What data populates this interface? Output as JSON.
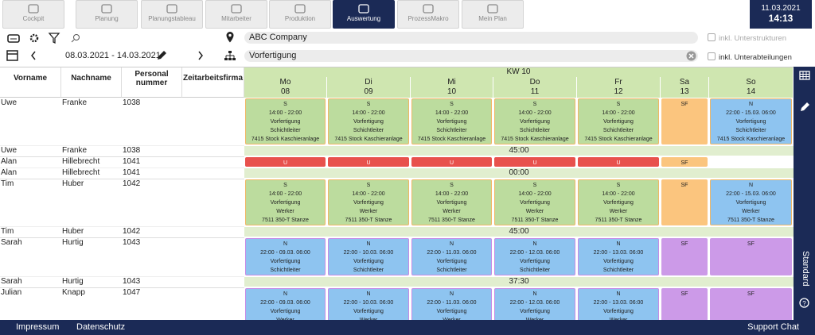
{
  "nav": {
    "items": [
      "Cockpit",
      "Planung",
      "Planungstableau",
      "Mitarbeiter",
      "Produktion",
      "Auswertung",
      "ProzessMakro",
      "Mein Plan"
    ],
    "active": 5
  },
  "datetime": {
    "date": "11.03.2021",
    "time": "14:13"
  },
  "filters": {
    "company": "ABC Company",
    "company_option": "inkl. Unterstrukturen",
    "period": "08.03.2021 - 14.03.2021",
    "department": "Vorfertigung",
    "department_option": "inkl. Unterabteilungen"
  },
  "table": {
    "headers": [
      "Vorname",
      "Nachname",
      "Personal nummer",
      "Zeitarbeitsfirma"
    ],
    "week": "KW 10",
    "days": [
      {
        "name": "Mo",
        "num": "08"
      },
      {
        "name": "Di",
        "num": "09"
      },
      {
        "name": "Mi",
        "num": "10"
      },
      {
        "name": "Do",
        "num": "11"
      },
      {
        "name": "Fr",
        "num": "12"
      },
      {
        "name": "Sa",
        "num": "13"
      },
      {
        "name": "So",
        "num": "14"
      }
    ],
    "employees": [
      {
        "first": "Uwe",
        "last": "Franke",
        "id": "1038",
        "total": "45:00",
        "shifts": [
          {
            "lines": [
              "S",
              "14:00 - 22:00",
              "Vorfertigung",
              "Schichtleiter",
              "7415 Stock Kaschieranlage"
            ],
            "fill": "#bcdc9e",
            "border": "#f0b766"
          },
          {
            "lines": [
              "S",
              "14:00 - 22:00",
              "Vorfertigung",
              "Schichtleiter",
              "7415 Stock Kaschieranlage"
            ],
            "fill": "#bcdc9e",
            "border": "#f0b766"
          },
          {
            "lines": [
              "S",
              "14:00 - 22:00",
              "Vorfertigung",
              "Schichtleiter",
              "7415 Stock Kaschieranlage"
            ],
            "fill": "#bcdc9e",
            "border": "#f0b766"
          },
          {
            "lines": [
              "S",
              "14:00 - 22:00",
              "Vorfertigung",
              "Schichtleiter",
              "7415 Stock Kaschieranlage"
            ],
            "fill": "#bcdc9e",
            "border": "#f0b766"
          },
          {
            "lines": [
              "S",
              "14:00 - 22:00",
              "Vorfertigung",
              "Schichtleiter",
              "7415 Stock Kaschieranlage"
            ],
            "fill": "#bcdc9e",
            "border": "#f0b766"
          },
          {
            "lines": [
              "SF"
            ],
            "fill": "#fbc57e",
            "border": "#fbc57e"
          },
          {
            "lines": [
              "N",
              "22:00 - 15.03. 06:00",
              "Vorfertigung",
              "Schichtleiter",
              "7415 Stock Kaschieranlage"
            ],
            "fill": "#8ec4f0",
            "border": "#f0b766"
          }
        ]
      },
      {
        "first": "Alan",
        "last": "Hillebrecht",
        "id": "1041",
        "total": "00:00",
        "shifts": [
          {
            "lines": [
              "U"
            ],
            "fill": "#e8514d",
            "border": "#e8514d"
          },
          {
            "lines": [
              "U"
            ],
            "fill": "#e8514d",
            "border": "#e8514d"
          },
          {
            "lines": [
              "U"
            ],
            "fill": "#e8514d",
            "border": "#e8514d"
          },
          {
            "lines": [
              "U"
            ],
            "fill": "#e8514d",
            "border": "#e8514d"
          },
          {
            "lines": [
              "U"
            ],
            "fill": "#e8514d",
            "border": "#e8514d"
          },
          {
            "lines": [
              "SF"
            ],
            "fill": "#fbc57e",
            "border": "#fbc57e"
          },
          null
        ]
      },
      {
        "first": "Tim",
        "last": "Huber",
        "id": "1042",
        "total": "45:00",
        "shifts": [
          {
            "lines": [
              "S",
              "14:00 - 22:00",
              "Vorfertigung",
              "Werker",
              "7511 350-T Stanze"
            ],
            "fill": "#bcdc9e",
            "border": "#f0b766"
          },
          {
            "lines": [
              "S",
              "14:00 - 22:00",
              "Vorfertigung",
              "Werker",
              "7511 350-T Stanze"
            ],
            "fill": "#bcdc9e",
            "border": "#f0b766"
          },
          {
            "lines": [
              "S",
              "14:00 - 22:00",
              "Vorfertigung",
              "Werker",
              "7511 350-T Stanze"
            ],
            "fill": "#bcdc9e",
            "border": "#f0b766"
          },
          {
            "lines": [
              "S",
              "14:00 - 22:00",
              "Vorfertigung",
              "Werker",
              "7511 350-T Stanze"
            ],
            "fill": "#bcdc9e",
            "border": "#f0b766"
          },
          {
            "lines": [
              "S",
              "14:00 - 22:00",
              "Vorfertigung",
              "Werker",
              "7511 350-T Stanze"
            ],
            "fill": "#bcdc9e",
            "border": "#f0b766"
          },
          {
            "lines": [
              "SF"
            ],
            "fill": "#fbc57e",
            "border": "#fbc57e"
          },
          {
            "lines": [
              "N",
              "22:00 - 15.03. 06:00",
              "Vorfertigung",
              "Werker",
              "7511 350-T Stanze"
            ],
            "fill": "#8ec4f0",
            "border": "#f0b766"
          }
        ]
      },
      {
        "first": "Sarah",
        "last": "Hurtig",
        "id": "1043",
        "total": "37:30",
        "shifts": [
          {
            "lines": [
              "N",
              "22:00 - 09.03. 06:00",
              "Vorfertigung",
              "Schichtleiter"
            ],
            "fill": "#8ec4f0",
            "border": "#c58be6"
          },
          {
            "lines": [
              "N",
              "22:00 - 10.03. 06:00",
              "Vorfertigung",
              "Schichtleiter"
            ],
            "fill": "#8ec4f0",
            "border": "#c58be6"
          },
          {
            "lines": [
              "N",
              "22:00 - 11.03. 06:00",
              "Vorfertigung",
              "Schichtleiter"
            ],
            "fill": "#8ec4f0",
            "border": "#c58be6"
          },
          {
            "lines": [
              "N",
              "22:00 - 12.03. 06:00",
              "Vorfertigung",
              "Schichtleiter"
            ],
            "fill": "#8ec4f0",
            "border": "#c58be6"
          },
          {
            "lines": [
              "N",
              "22:00 - 13.03. 06:00",
              "Vorfertigung",
              "Schichtleiter"
            ],
            "fill": "#8ec4f0",
            "border": "#c58be6"
          },
          {
            "lines": [
              "SF"
            ],
            "fill": "#cc9ae8",
            "border": "#cc9ae8"
          },
          {
            "lines": [
              "SF"
            ],
            "fill": "#cc9ae8",
            "border": "#cc9ae8"
          }
        ]
      },
      {
        "first": "Julian",
        "last": "Knapp",
        "id": "1047",
        "shifts": [
          {
            "lines": [
              "N",
              "22:00 - 09.03. 06:00",
              "Vorfertigung",
              "Werker"
            ],
            "fill": "#8ec4f0",
            "border": "#c58be6"
          },
          {
            "lines": [
              "N",
              "22:00 - 10.03. 06:00",
              "Vorfertigung",
              "Werker"
            ],
            "fill": "#8ec4f0",
            "border": "#c58be6"
          },
          {
            "lines": [
              "N",
              "22:00 - 11.03. 06:00",
              "Vorfertigung",
              "Werker"
            ],
            "fill": "#8ec4f0",
            "border": "#c58be6"
          },
          {
            "lines": [
              "N",
              "22:00 - 12.03. 06:00",
              "Vorfertigung",
              "Werker"
            ],
            "fill": "#8ec4f0",
            "border": "#c58be6"
          },
          {
            "lines": [
              "N",
              "22:00 - 13.03. 06:00",
              "Vorfertigung",
              "Werker"
            ],
            "fill": "#8ec4f0",
            "border": "#c58be6"
          },
          {
            "lines": [
              "SF"
            ],
            "fill": "#cc9ae8",
            "border": "#cc9ae8"
          },
          {
            "lines": [
              "SF"
            ],
            "fill": "#cc9ae8",
            "border": "#cc9ae8"
          }
        ]
      }
    ]
  },
  "sidebar": {
    "view": "Standard"
  },
  "footer": {
    "links": [
      "Impressum",
      "Datenschutz"
    ],
    "support": "Support Chat"
  }
}
